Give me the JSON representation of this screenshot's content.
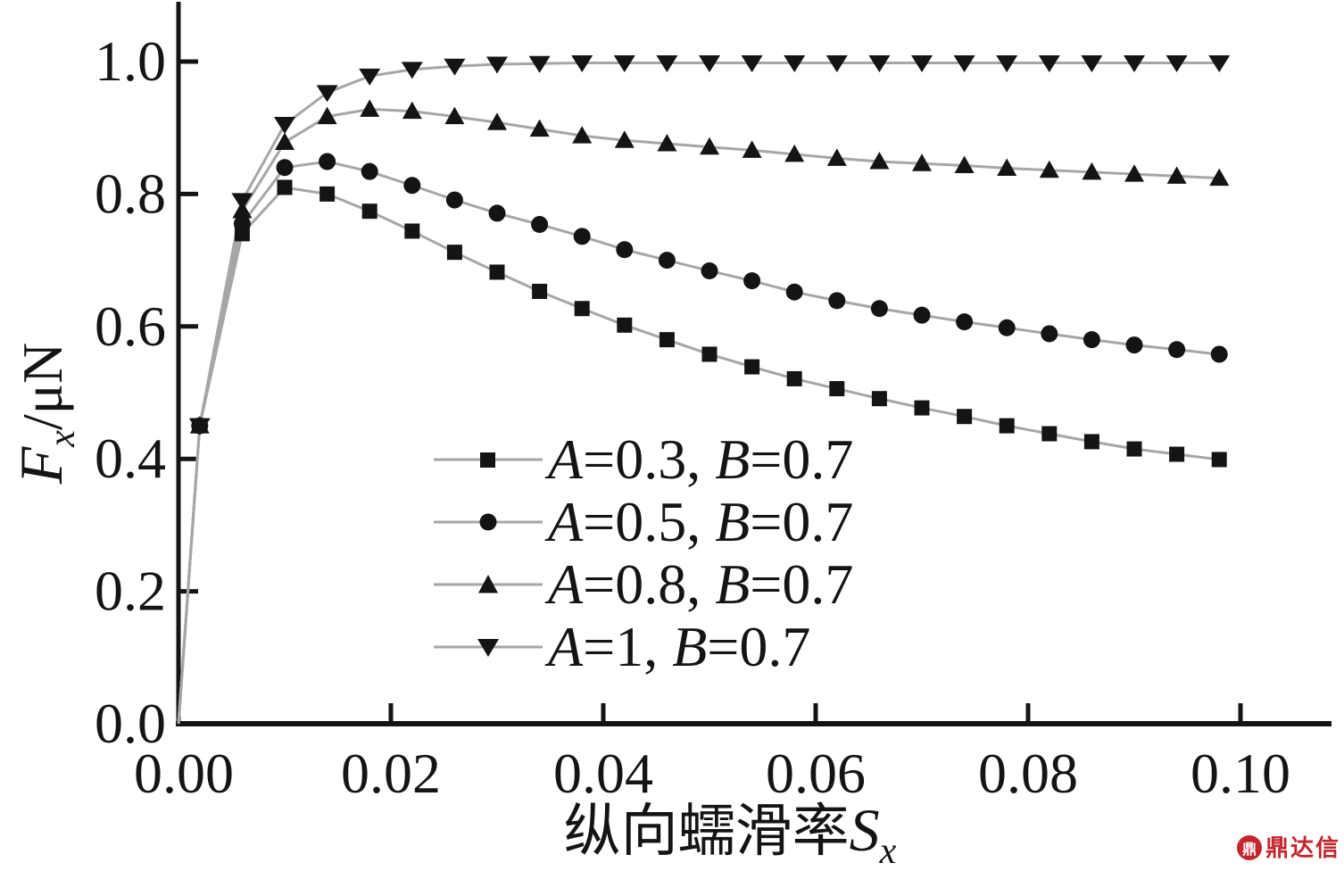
{
  "chart_data": {
    "type": "line",
    "title": "",
    "xlabel_cn": "纵向蠕滑率",
    "xlabel_var": "S",
    "xlabel_sub": "x",
    "ylabel_var": "F",
    "ylabel_sub": "x",
    "ylabel_rest": "/μN",
    "xlim": [
      0,
      0.108
    ],
    "ylim": [
      0,
      1.06
    ],
    "grid": false,
    "legend_position": "inside-center-left",
    "x_ticks": [
      0,
      0.02,
      0.04,
      0.06,
      0.08,
      0.1
    ],
    "x_tick_labels": [
      "0.00",
      "0.02",
      "0.04",
      "0.06",
      "0.08",
      "0.10"
    ],
    "y_ticks": [
      0,
      0.2,
      0.4,
      0.6,
      0.8,
      1.0
    ],
    "y_tick_labels": [
      "0.0",
      "0.2",
      "0.4",
      "0.6",
      "0.8",
      "1.0"
    ],
    "x": [
      0.002,
      0.006,
      0.01,
      0.014,
      0.018,
      0.022,
      0.026,
      0.03,
      0.034,
      0.038,
      0.042,
      0.046,
      0.05,
      0.054,
      0.058,
      0.062,
      0.066,
      0.07,
      0.074,
      0.078,
      0.082,
      0.086,
      0.09,
      0.094,
      0.098
    ],
    "series": [
      {
        "name": "A=0.3, B=0.7",
        "marker": "square",
        "values": [
          0.45,
          0.74,
          0.81,
          0.8,
          0.774,
          0.744,
          0.712,
          0.682,
          0.653,
          0.627,
          0.602,
          0.58,
          0.558,
          0.539,
          0.521,
          0.506,
          0.491,
          0.477,
          0.464,
          0.45,
          0.438,
          0.426,
          0.415,
          0.407,
          0.399
        ]
      },
      {
        "name": "A=0.5, B=0.7",
        "marker": "circle",
        "values": [
          0.45,
          0.755,
          0.84,
          0.849,
          0.834,
          0.813,
          0.791,
          0.771,
          0.754,
          0.736,
          0.716,
          0.7,
          0.684,
          0.669,
          0.652,
          0.639,
          0.627,
          0.617,
          0.607,
          0.598,
          0.589,
          0.58,
          0.572,
          0.565,
          0.558
        ]
      },
      {
        "name": "A=0.8, B=0.7",
        "marker": "triangle-up",
        "values": [
          0.45,
          0.775,
          0.878,
          0.917,
          0.928,
          0.925,
          0.917,
          0.908,
          0.898,
          0.888,
          0.881,
          0.876,
          0.871,
          0.866,
          0.86,
          0.854,
          0.849,
          0.846,
          0.843,
          0.839,
          0.836,
          0.833,
          0.83,
          0.827,
          0.824
        ]
      },
      {
        "name": "A=1, B=0.7",
        "marker": "triangle-down",
        "values": [
          0.45,
          0.79,
          0.905,
          0.953,
          0.978,
          0.988,
          0.993,
          0.996,
          0.997,
          0.998,
          0.998,
          0.998,
          0.998,
          0.998,
          0.998,
          0.998,
          0.998,
          0.998,
          0.998,
          0.998,
          0.998,
          0.998,
          0.998,
          0.998,
          0.998
        ]
      }
    ],
    "line_color": "#a6a6a6",
    "marker_color": "#141414",
    "axis_color": "#141414",
    "legend": {
      "items": [
        {
          "marker": "square",
          "var_a": "A",
          "rest_a": "=0.3, ",
          "var_b": "B",
          "rest_b": "=0.7"
        },
        {
          "marker": "circle",
          "var_a": "A",
          "rest_a": "=0.5, ",
          "var_b": "B",
          "rest_b": "=0.7"
        },
        {
          "marker": "triangle-up",
          "var_a": "A",
          "rest_a": "=0.8, ",
          "var_b": "B",
          "rest_b": "=0.7"
        },
        {
          "marker": "triangle-down",
          "var_a": "A",
          "rest_a": "=1, ",
          "var_b": "B",
          "rest_b": "=0.7"
        }
      ]
    }
  },
  "watermark": {
    "text": "鼎达信",
    "logo_glyph": "鼎",
    "color": "#c1272d"
  }
}
